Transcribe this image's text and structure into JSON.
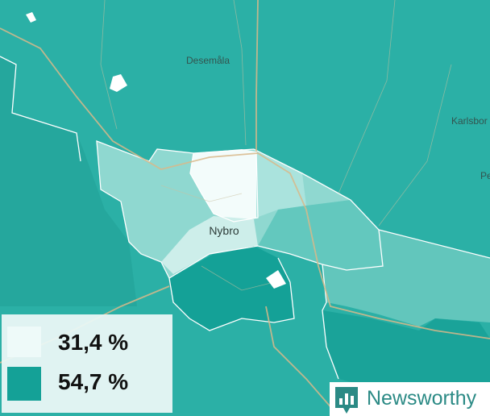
{
  "map": {
    "places": [
      "Desemåla",
      "Karlsbor",
      "Pe",
      "Nybro"
    ],
    "legend": [
      {
        "label": "31,4 %",
        "color": "#eefaf9"
      },
      {
        "label": "54,7 %",
        "color": "#14a197"
      }
    ],
    "brand": "Newsworthy"
  }
}
